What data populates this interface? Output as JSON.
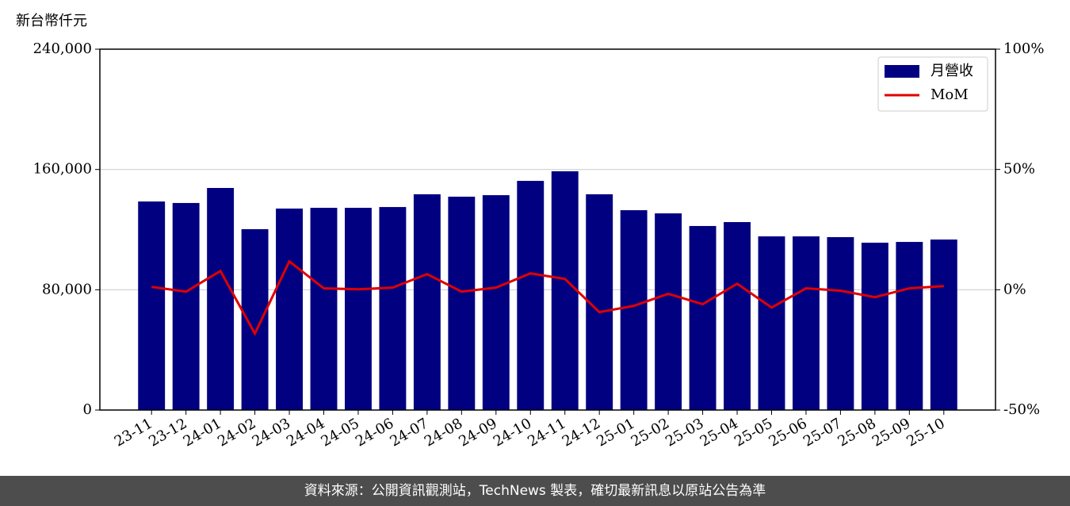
{
  "chart_data": {
    "type": "bar",
    "y_label": "新台幣仟元",
    "categories": [
      "23-11",
      "23-12",
      "24-01",
      "24-02",
      "24-03",
      "24-04",
      "24-05",
      "24-06",
      "24-07",
      "24-08",
      "24-09",
      "24-10",
      "24-11",
      "24-12",
      "25-01",
      "25-02",
      "25-03",
      "25-04",
      "25-05",
      "25-06",
      "25-07",
      "25-08",
      "25-09",
      "25-10"
    ],
    "series": [
      {
        "name": "月營收",
        "type": "bar",
        "color": "#000080",
        "values": [
          138700,
          137700,
          147700,
          120300,
          134000,
          134500,
          134500,
          135000,
          143500,
          141900,
          142900,
          152400,
          158800,
          143500,
          132900,
          130800,
          122400,
          125000,
          115500,
          115500,
          115000,
          111300,
          111800,
          113400
        ]
      },
      {
        "name": "MoM",
        "type": "line",
        "axis": "y2",
        "color": "#e00000",
        "values": [
          1.2,
          -0.8,
          7.8,
          -18.2,
          11.8,
          0.6,
          0.2,
          0.9,
          6.5,
          -0.8,
          0.9,
          6.8,
          4.5,
          -9.3,
          -6.7,
          -1.7,
          -6.0,
          2.5,
          -7.4,
          0.6,
          -0.4,
          -3.1,
          0.6,
          1.5
        ]
      }
    ],
    "ylim": [
      0,
      240000
    ],
    "yticks": [
      0,
      {
        "value": 80000,
        "label": "80,000"
      },
      {
        "value": 160000,
        "label": "160,000"
      },
      {
        "value": 240000,
        "label": "240,000"
      }
    ],
    "y2lim": [
      -50,
      100
    ],
    "y2ticks": [
      {
        "value": -50,
        "label": "-50%"
      },
      {
        "value": 0,
        "label": "0%"
      },
      {
        "value": 50,
        "label": "50%"
      },
      {
        "value": 100,
        "label": "100%"
      }
    ],
    "grid": true,
    "legend": "upper-right",
    "source": "資料來源：公開資訊觀測站，TechNews 製表，確切最新訊息以原站公告為準"
  }
}
